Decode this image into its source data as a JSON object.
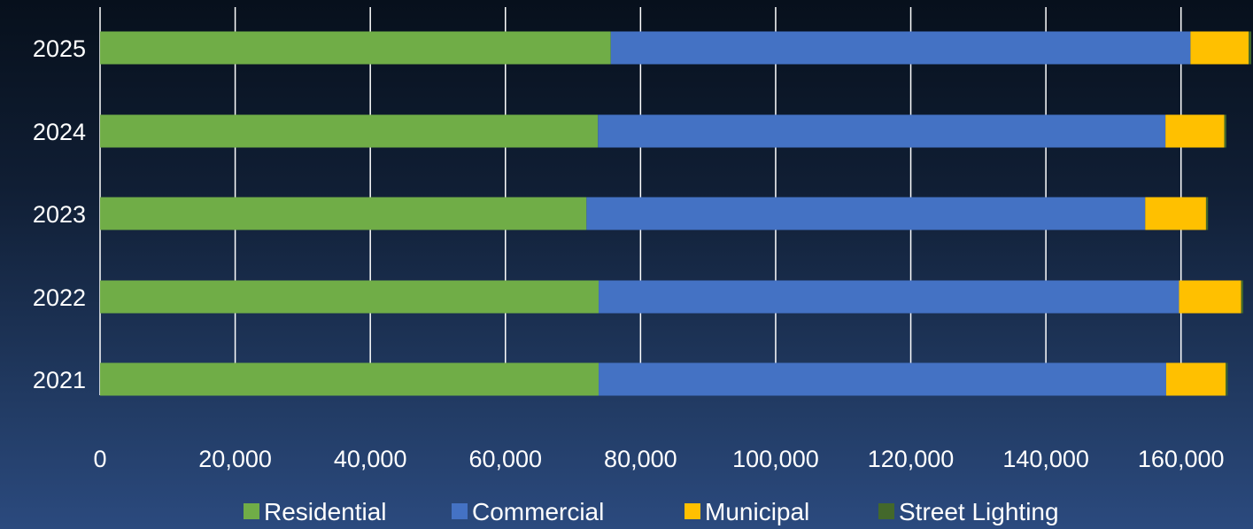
{
  "chart_data": {
    "type": "bar",
    "orientation": "horizontal",
    "stacked": true,
    "title": "",
    "xlabel": "",
    "ylabel": "",
    "categories": [
      "2025",
      "2024",
      "2023",
      "2022",
      "2021"
    ],
    "series": [
      {
        "name": "Residential",
        "color": "#70ad47",
        "values": [
          75600,
          73700,
          72000,
          73800,
          73800
        ]
      },
      {
        "name": "Commercial",
        "color": "#4472c4",
        "values": [
          85800,
          84000,
          82700,
          85900,
          84000
        ]
      },
      {
        "name": "Municipal",
        "color": "#ffc000",
        "values": [
          8600,
          8700,
          9000,
          9200,
          8800
        ]
      },
      {
        "name": "Street Lighting",
        "color": "#43682b",
        "values": [
          400,
          300,
          300,
          300,
          300
        ]
      }
    ],
    "xlim": [
      0,
      170000
    ],
    "x_ticks": [
      0,
      20000,
      40000,
      60000,
      80000,
      100000,
      120000,
      140000,
      160000
    ],
    "x_tick_labels": [
      "0",
      "20,000",
      "40,000",
      "60,000",
      "80,000",
      "100,000",
      "120,000",
      "140,000",
      "160,000"
    ],
    "grid": "vertical",
    "legend_position": "bottom"
  }
}
